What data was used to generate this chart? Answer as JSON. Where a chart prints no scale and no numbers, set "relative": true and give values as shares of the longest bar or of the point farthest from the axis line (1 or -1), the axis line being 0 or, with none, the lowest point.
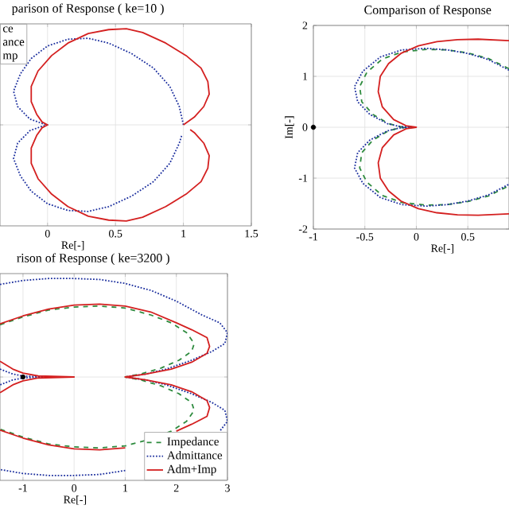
{
  "chart_data": [
    {
      "type": "line",
      "title": "parison of Response ( ke=10 )",
      "xlabel": "Re[-]",
      "xlim": [
        -0.35,
        1.5
      ],
      "xticks": [
        0,
        0.5,
        1,
        1.5
      ],
      "relative": true,
      "grid": true,
      "annotations": [
        "ce",
        "ance",
        "mp"
      ],
      "series": [
        {
          "color": "#1c2f9e",
          "line_style": "dotted",
          "x": [
            1,
            0.97,
            0.9,
            0.78,
            0.62,
            0.45,
            0.3,
            0.15,
            0,
            -0.12,
            -0.2,
            -0.25,
            -0.22,
            -0.13,
            -0.05,
            0,
            -0.05,
            -0.13,
            -0.22,
            -0.25,
            -0.2,
            -0.12,
            0,
            0.15,
            0.3,
            0.45,
            0.62,
            0.78,
            0.9,
            0.97,
            0.99
          ],
          "values": [
            0,
            0.19,
            0.4,
            0.59,
            0.74,
            0.85,
            0.9,
            0.89,
            0.82,
            0.69,
            0.53,
            0.35,
            0.19,
            0.06,
            0.02,
            0,
            -0.02,
            -0.06,
            -0.19,
            -0.35,
            -0.53,
            -0.69,
            -0.82,
            -0.89,
            -0.9,
            -0.85,
            -0.74,
            -0.59,
            -0.4,
            -0.19,
            -0.1
          ]
        },
        {
          "color": "#d42020",
          "line_style": "solid",
          "x": [
            1.0,
            1.08,
            1.15,
            1.19,
            1.18,
            1.13,
            1.02,
            0.87,
            0.7,
            0.58,
            0.45,
            0.3,
            0.15,
            0.03,
            -0.07,
            -0.12,
            -0.12,
            -0.08,
            -0.04,
            0,
            -0.04,
            -0.08,
            -0.12,
            -0.12,
            -0.07,
            0.03,
            0.15,
            0.3,
            0.45,
            0.58,
            0.7,
            0.87,
            1.02,
            1.13,
            1.18,
            1.19,
            1.15,
            1.08,
            1.05
          ],
          "values": [
            0,
            0.08,
            0.19,
            0.32,
            0.45,
            0.59,
            0.72,
            0.85,
            0.96,
            1,
            0.99,
            0.95,
            0.85,
            0.72,
            0.56,
            0.4,
            0.24,
            0.11,
            0.03,
            0,
            -0.03,
            -0.11,
            -0.24,
            -0.4,
            -0.56,
            -0.72,
            -0.85,
            -0.95,
            -0.99,
            -1,
            -0.96,
            -0.85,
            -0.72,
            -0.59,
            -0.45,
            -0.32,
            -0.19,
            -0.08,
            -0.05
          ]
        }
      ]
    },
    {
      "type": "line",
      "title": "Comparison of Response",
      "xlabel": "Re[-]",
      "ylabel": "Im[-]",
      "xlim": [
        -1,
        0.9
      ],
      "ylim": [
        -2,
        2
      ],
      "xticks": [
        -1,
        -0.5,
        0,
        0.5
      ],
      "yticks": [
        -2,
        -1,
        0,
        1,
        2
      ],
      "grid": true,
      "series": [
        {
          "color": "#2e8b3e",
          "line_style": "dashed",
          "x": [
            0.9,
            0.7,
            0.5,
            0.3,
            0.1,
            -0.14,
            -0.33,
            -0.48,
            -0.55,
            -0.53,
            -0.42,
            -0.27,
            -0.15,
            0,
            -0.15,
            -0.27,
            -0.42,
            -0.53,
            -0.55,
            -0.48,
            -0.33,
            -0.14,
            0.1,
            0.3,
            0.5,
            0.7,
            0.9
          ],
          "values": [
            1.15,
            1.35,
            1.46,
            1.52,
            1.53,
            1.48,
            1.34,
            1.08,
            0.8,
            0.5,
            0.25,
            0.07,
            0.01,
            0,
            -0.01,
            -0.07,
            -0.25,
            -0.5,
            -0.8,
            -1.08,
            -1.34,
            -1.48,
            -1.53,
            -1.52,
            -1.46,
            -1.35,
            -1.15
          ]
        },
        {
          "color": "#1c2f9e",
          "line_style": "dotted",
          "x": [
            0.9,
            0.7,
            0.5,
            0.3,
            0.1,
            -0.14,
            -0.35,
            -0.52,
            -0.6,
            -0.57,
            -0.45,
            -0.28,
            -0.15,
            0,
            -0.15,
            -0.28,
            -0.45,
            -0.57,
            -0.6,
            -0.52,
            -0.35,
            -0.14,
            0.1,
            0.3,
            0.5,
            0.7,
            0.9
          ],
          "values": [
            1.12,
            1.33,
            1.45,
            1.52,
            1.55,
            1.52,
            1.38,
            1.1,
            0.8,
            0.5,
            0.25,
            0.07,
            0.01,
            0,
            -0.01,
            -0.07,
            -0.25,
            -0.5,
            -0.8,
            -1.1,
            -1.38,
            -1.52,
            -1.55,
            -1.52,
            -1.45,
            -1.33,
            -1.12
          ]
        },
        {
          "color": "#d42020",
          "line_style": "solid",
          "x": [
            0.9,
            0.6,
            0.4,
            0.2,
            0.02,
            -0.15,
            -0.27,
            -0.35,
            -0.37,
            -0.33,
            -0.22,
            -0.1,
            0,
            -0.1,
            -0.22,
            -0.33,
            -0.37,
            -0.35,
            -0.27,
            -0.15,
            0.02,
            0.2,
            0.4,
            0.6,
            0.9
          ],
          "values": [
            1.7,
            1.73,
            1.72,
            1.68,
            1.6,
            1.45,
            1.25,
            1.0,
            0.7,
            0.4,
            0.15,
            0.03,
            0,
            -0.03,
            -0.15,
            -0.4,
            -0.7,
            -1.0,
            -1.25,
            -1.45,
            -1.6,
            -1.68,
            -1.72,
            -1.73,
            -1.7
          ]
        },
        {
          "type": "scatter",
          "marker": "circle",
          "color": "#000000",
          "x": [
            -1
          ],
          "values": [
            0
          ]
        }
      ]
    },
    {
      "type": "line",
      "title": "rison of Response ( ke=3200 )",
      "xlabel": "Re[-]",
      "xlim": [
        -1.45,
        3
      ],
      "xticks": [
        -1,
        0,
        1,
        2,
        3
      ],
      "relative": true,
      "grid": true,
      "legend": "bottom right",
      "series": [
        {
          "name": "Impedance",
          "color": "#2e8b3e",
          "line_style": "dashed",
          "x": [
            -1.45,
            -1,
            -0.5,
            0,
            0.5,
            1,
            1.5,
            1.9,
            2.2,
            2.35,
            2.3,
            2.05,
            1.7,
            1.3,
            1,
            1.3,
            1.7,
            2.05,
            2.3,
            2.35,
            2.2,
            1.9,
            1.5,
            1,
            0.5,
            0,
            -0.5,
            -1,
            -1.45
          ],
          "values": [
            0.53,
            0.61,
            0.68,
            0.71,
            0.72,
            0.7,
            0.63,
            0.55,
            0.45,
            0.34,
            0.26,
            0.17,
            0.09,
            0.03,
            0,
            -0.03,
            -0.09,
            -0.17,
            -0.26,
            -0.34,
            -0.45,
            -0.55,
            -0.63,
            -0.7,
            -0.72,
            -0.71,
            -0.68,
            -0.61,
            -0.53
          ]
        },
        {
          "name": "Admittance",
          "color": "#1c2f9e",
          "line_style": "dotted",
          "x": [
            -1.45,
            -1,
            -0.5,
            0,
            0.5,
            1,
            1.5,
            2,
            2.5,
            2.85,
            3.0,
            2.95,
            2.7,
            2.3,
            1.8,
            1.4,
            1,
            1.4,
            1.8,
            2.3,
            2.7,
            2.95,
            3.0,
            2.85,
            2.5,
            2,
            1.5,
            1,
            0.5,
            0,
            -0.5,
            -1,
            -1.45
          ],
          "values": [
            0.94,
            0.98,
            1,
            1,
            0.99,
            0.95,
            0.88,
            0.77,
            0.63,
            0.55,
            0.45,
            0.34,
            0.26,
            0.17,
            0.08,
            0.03,
            0,
            -0.03,
            -0.08,
            -0.17,
            -0.26,
            -0.34,
            -0.45,
            -0.55,
            null,
            null,
            null,
            -0.95,
            -0.99,
            -1,
            -1,
            -0.98,
            -0.94
          ]
        },
        {
          "name": "Adm+Imp",
          "color": "#d42020",
          "line_style": "solid",
          "x": [
            -1.45,
            -1,
            -0.5,
            0,
            0.5,
            1,
            1.5,
            2,
            2.3,
            2.6,
            2.65,
            2.6,
            2.3,
            1.9,
            1.4,
            1,
            1.4,
            1.9,
            2.3,
            2.6,
            2.65,
            2.6,
            2.3,
            2,
            1.5,
            1,
            0.5,
            0,
            -0.5,
            -1,
            -1.45
          ],
          "values": [
            0.54,
            0.62,
            0.69,
            0.73,
            0.74,
            0.72,
            0.66,
            0.55,
            0.48,
            0.4,
            0.31,
            0.24,
            0.15,
            0.08,
            0.03,
            0,
            -0.03,
            -0.08,
            -0.15,
            -0.24,
            -0.31,
            -0.4,
            -0.48,
            -0.55,
            null,
            -0.72,
            -0.74,
            -0.73,
            -0.69,
            -0.62,
            -0.54
          ]
        },
        {
          "color": "#1c2f9e",
          "line_style": "dotted",
          "x": [
            -1.45,
            -1.2,
            -1,
            -0.6,
            -1,
            -1.2,
            -1.45
          ],
          "values": [
            0.08,
            0.03,
            0.01,
            0,
            -0.01,
            -0.03,
            -0.08
          ]
        },
        {
          "color": "#d42020",
          "line_style": "solid",
          "x": [
            -1.45,
            -1.2,
            -1,
            -0.7,
            0,
            -0.7,
            -1,
            -1.2,
            -1.45
          ],
          "values": [
            0.16,
            0.08,
            0.04,
            0.01,
            0,
            -0.01,
            -0.04,
            -0.08,
            -0.16
          ]
        },
        {
          "type": "scatter",
          "marker": "circle",
          "color": "#000000",
          "x": [
            -1
          ],
          "values": [
            0
          ]
        }
      ]
    }
  ]
}
